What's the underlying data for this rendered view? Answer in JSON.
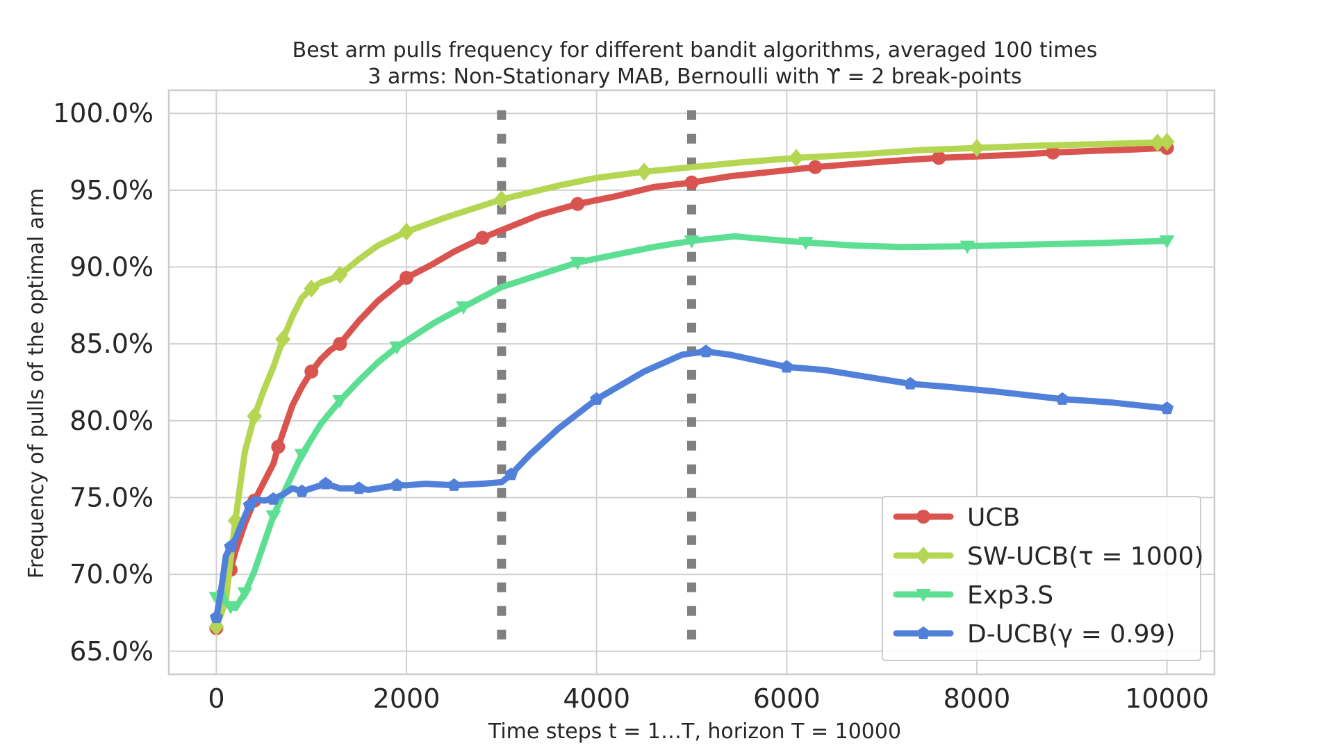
{
  "chart_data": {
    "type": "line",
    "title_line1": "Best arm pulls frequency for different bandit algorithms, averaged 100 times",
    "title_line2": "3 arms: Non-Stationary MAB, Bernoulli with ϒ = 2 break-points",
    "xlabel": "Time steps t = 1…T, horizon T = 10000",
    "ylabel": "Frequency of pulls of the optimal arm",
    "xlim": [
      -500,
      10500
    ],
    "ylim": [
      63.5,
      101.5
    ],
    "xticks": [
      0,
      2000,
      4000,
      6000,
      8000,
      10000
    ],
    "xtick_labels": [
      "0",
      "2000",
      "4000",
      "6000",
      "8000",
      "10000"
    ],
    "yticks": [
      65,
      70,
      75,
      80,
      85,
      90,
      95,
      100
    ],
    "ytick_labels": [
      "65.0%",
      "70.0%",
      "75.0%",
      "80.0%",
      "85.0%",
      "90.0%",
      "95.0%",
      "100.0%"
    ],
    "grid": true,
    "legend_position": "lower-right",
    "breakpoints": [
      3000,
      5000
    ],
    "breakpoint_color": "#808080",
    "series": [
      {
        "name": "UCB",
        "color": "#d9534f",
        "marker": "circle",
        "x": [
          0,
          50,
          100,
          150,
          200,
          300,
          400,
          500,
          600,
          650,
          800,
          900,
          1000,
          1100,
          1200,
          1300,
          1500,
          1700,
          2000,
          2250,
          2500,
          2800,
          3000,
          3400,
          3800,
          4200,
          4600,
          5000,
          5400,
          5850,
          6300,
          6700,
          7100,
          7600,
          8000,
          8400,
          8800,
          9200,
          9650,
          10000
        ],
        "y": [
          66.5,
          68.3,
          69.2,
          70.3,
          71.5,
          73.3,
          74.8,
          76.0,
          77.2,
          78.3,
          81.0,
          82.2,
          83.2,
          84.0,
          84.6,
          85.0,
          86.5,
          87.8,
          89.3,
          90.1,
          91.0,
          91.9,
          92.4,
          93.4,
          94.1,
          94.6,
          95.2,
          95.5,
          95.9,
          96.2,
          96.5,
          96.7,
          96.9,
          97.1,
          97.2,
          97.3,
          97.45,
          97.55,
          97.65,
          97.75
        ]
      },
      {
        "name": "SW-UCB(τ = 1000)",
        "color": "#b5d652",
        "marker": "diamond",
        "x": [
          0,
          100,
          150,
          200,
          250,
          300,
          400,
          500,
          600,
          700,
          800,
          900,
          1000,
          1100,
          1200,
          1300,
          1500,
          1700,
          2000,
          2400,
          2800,
          3000,
          3600,
          4000,
          4500,
          5000,
          5500,
          6100,
          6700,
          7400,
          8000,
          8650,
          9300,
          9900,
          10000
        ],
        "y": [
          66.6,
          68.3,
          71.0,
          73.5,
          75.8,
          78.0,
          80.3,
          82.0,
          83.5,
          85.3,
          86.8,
          88.0,
          88.6,
          89.0,
          89.2,
          89.5,
          90.5,
          91.4,
          92.3,
          93.2,
          94.0,
          94.4,
          95.3,
          95.8,
          96.2,
          96.5,
          96.8,
          97.1,
          97.3,
          97.6,
          97.75,
          97.9,
          98.0,
          98.1,
          98.15
        ]
      },
      {
        "name": "Exp3.S",
        "color": "#5ddf93",
        "marker": "triangle-down",
        "x": [
          0,
          50,
          100,
          150,
          200,
          250,
          300,
          400,
          500,
          600,
          700,
          800,
          900,
          1000,
          1100,
          1300,
          1500,
          1700,
          1900,
          2100,
          2300,
          2600,
          3000,
          3400,
          3800,
          4200,
          4600,
          5000,
          5450,
          5800,
          6200,
          6700,
          7200,
          7900,
          8500,
          9200,
          10000
        ],
        "y": [
          68.5,
          69.0,
          68.2,
          67.9,
          67.8,
          68.3,
          68.8,
          70.2,
          72.0,
          73.8,
          75.2,
          76.5,
          77.8,
          78.8,
          79.8,
          81.3,
          82.6,
          83.8,
          84.8,
          85.6,
          86.4,
          87.4,
          88.7,
          89.5,
          90.3,
          90.8,
          91.3,
          91.7,
          92.0,
          91.8,
          91.6,
          91.4,
          91.3,
          91.35,
          91.45,
          91.55,
          91.7
        ]
      },
      {
        "name": "D-UCB(γ = 0.99)",
        "color": "#5080d9",
        "marker": "pentagon",
        "x": [
          0,
          50,
          100,
          150,
          200,
          300,
          350,
          400,
          500,
          600,
          700,
          800,
          900,
          1000,
          1100,
          1150,
          1200,
          1300,
          1500,
          1600,
          1700,
          1900,
          2000,
          2200,
          2500,
          2800,
          3000,
          3100,
          3300,
          3600,
          4000,
          4500,
          4900,
          5150,
          5400,
          5700,
          6000,
          6400,
          6900,
          7300,
          7700,
          8200,
          8900,
          9400,
          10000
        ],
        "y": [
          67.2,
          69.0,
          71.2,
          71.8,
          72.3,
          73.8,
          74.5,
          74.9,
          74.8,
          74.9,
          75.2,
          75.6,
          75.4,
          75.6,
          75.8,
          75.9,
          75.8,
          75.6,
          75.6,
          75.5,
          75.6,
          75.8,
          75.8,
          75.9,
          75.8,
          75.9,
          76.0,
          76.5,
          77.8,
          79.5,
          81.4,
          83.2,
          84.3,
          84.5,
          84.3,
          83.9,
          83.5,
          83.3,
          82.8,
          82.4,
          82.2,
          81.9,
          81.4,
          81.2,
          80.8
        ]
      }
    ]
  }
}
